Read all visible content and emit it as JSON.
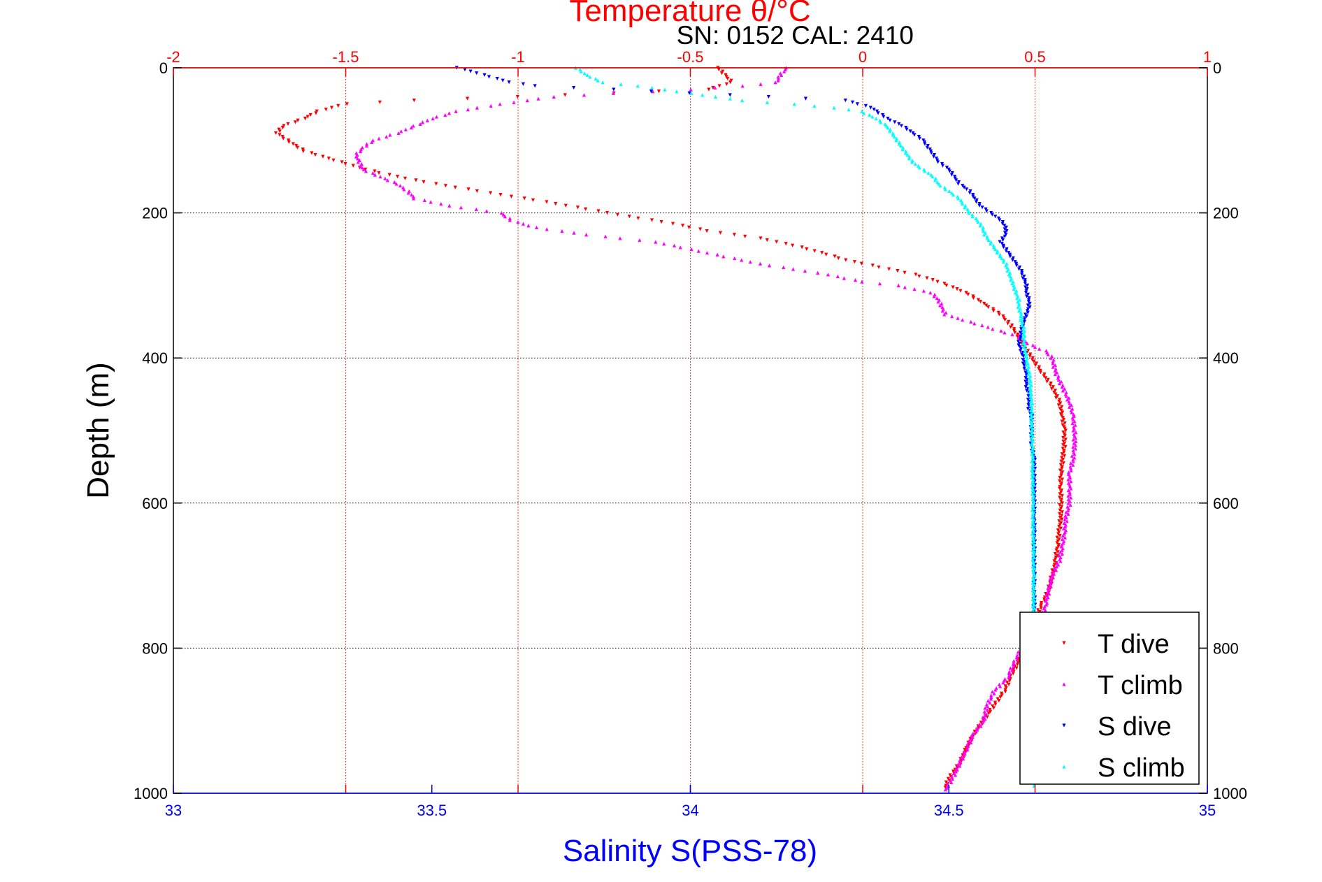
{
  "chart_data": {
    "type": "scatter",
    "title": "Temperature θ/°C",
    "subtitle": "SN: 0152  CAL: 2410",
    "xlabel": "Salinity S(PSS-78)",
    "ylabel": "Depth (m)",
    "top_axis": {
      "label": "Temperature θ/°C",
      "range": [
        -2,
        1
      ],
      "ticks": [
        "-2",
        "-1.5",
        "-1",
        "-0.5",
        "0",
        "0.5",
        "1"
      ],
      "color": "#ff0000"
    },
    "bottom_axis": {
      "label": "Salinity S(PSS-78)",
      "range": [
        33,
        35
      ],
      "ticks": [
        "33",
        "33.5",
        "34",
        "34.5",
        "35"
      ],
      "color": "#0000ff"
    },
    "depth_axis": {
      "range": [
        0,
        1000
      ],
      "inverted": true,
      "ticks": [
        "0",
        "200",
        "400",
        "600",
        "800",
        "1000"
      ]
    },
    "grid": true,
    "legend_position": "bottom-right",
    "series": [
      {
        "name": "T dive",
        "axis": "temperature",
        "color": "#ff0000",
        "marker": "triangle-down",
        "points": [
          [
            -0.42,
            0
          ],
          [
            -0.4,
            10
          ],
          [
            -0.38,
            20
          ],
          [
            -0.45,
            30
          ],
          [
            -1.0,
            40
          ],
          [
            -1.3,
            45
          ],
          [
            -1.5,
            50
          ],
          [
            -1.58,
            60
          ],
          [
            -1.62,
            70
          ],
          [
            -1.68,
            80
          ],
          [
            -1.7,
            90
          ],
          [
            -1.67,
            100
          ],
          [
            -1.62,
            115
          ],
          [
            -1.55,
            125
          ],
          [
            -1.48,
            135
          ],
          [
            -1.4,
            145
          ],
          [
            -1.3,
            155
          ],
          [
            -1.18,
            165
          ],
          [
            -1.05,
            175
          ],
          [
            -0.92,
            185
          ],
          [
            -0.8,
            195
          ],
          [
            -0.68,
            205
          ],
          [
            -0.55,
            215
          ],
          [
            -0.45,
            225
          ],
          [
            -0.3,
            235
          ],
          [
            -0.2,
            245
          ],
          [
            -0.12,
            255
          ],
          [
            -0.05,
            265
          ],
          [
            0.05,
            275
          ],
          [
            0.15,
            285
          ],
          [
            0.22,
            295
          ],
          [
            0.3,
            310
          ],
          [
            0.35,
            325
          ],
          [
            0.4,
            340
          ],
          [
            0.43,
            355
          ],
          [
            0.45,
            370
          ],
          [
            0.47,
            385
          ],
          [
            0.49,
            400
          ],
          [
            0.52,
            420
          ],
          [
            0.55,
            440
          ],
          [
            0.57,
            460
          ],
          [
            0.58,
            480
          ],
          [
            0.585,
            500
          ],
          [
            0.585,
            520
          ],
          [
            0.58,
            540
          ],
          [
            0.575,
            560
          ],
          [
            0.575,
            580
          ],
          [
            0.575,
            600
          ],
          [
            0.575,
            620
          ],
          [
            0.57,
            640
          ],
          [
            0.565,
            660
          ],
          [
            0.56,
            680
          ],
          [
            0.55,
            700
          ],
          [
            0.54,
            720
          ],
          [
            0.52,
            740
          ],
          [
            0.5,
            760
          ],
          [
            0.48,
            780
          ],
          [
            0.47,
            800
          ],
          [
            0.45,
            820
          ],
          [
            0.43,
            840
          ],
          [
            0.41,
            860
          ],
          [
            0.38,
            880
          ],
          [
            0.35,
            900
          ],
          [
            0.32,
            920
          ],
          [
            0.3,
            940
          ],
          [
            0.28,
            960
          ],
          [
            0.25,
            980
          ],
          [
            0.24,
            992
          ]
        ]
      },
      {
        "name": "T climb",
        "axis": "temperature",
        "color": "#ff00ff",
        "marker": "triangle-up",
        "points": [
          [
            -0.22,
            0
          ],
          [
            -0.24,
            10
          ],
          [
            -0.25,
            20
          ],
          [
            -0.35,
            25
          ],
          [
            -0.5,
            30
          ],
          [
            -0.72,
            35
          ],
          [
            -0.9,
            40
          ],
          [
            -1.05,
            50
          ],
          [
            -1.18,
            60
          ],
          [
            -1.25,
            70
          ],
          [
            -1.3,
            80
          ],
          [
            -1.35,
            90
          ],
          [
            -1.42,
            100
          ],
          [
            -1.45,
            110
          ],
          [
            -1.47,
            120
          ],
          [
            -1.46,
            130
          ],
          [
            -1.45,
            140
          ],
          [
            -1.4,
            150
          ],
          [
            -1.35,
            160
          ],
          [
            -1.32,
            170
          ],
          [
            -1.3,
            180
          ],
          [
            -1.2,
            190
          ],
          [
            -1.05,
            200
          ],
          [
            -1.02,
            210
          ],
          [
            -0.95,
            220
          ],
          [
            -0.8,
            230
          ],
          [
            -0.6,
            240
          ],
          [
            -0.5,
            250
          ],
          [
            -0.4,
            260
          ],
          [
            -0.3,
            270
          ],
          [
            -0.1,
            285
          ],
          [
            0.0,
            295
          ],
          [
            0.1,
            300
          ],
          [
            0.2,
            310
          ],
          [
            0.22,
            320
          ],
          [
            0.23,
            330
          ],
          [
            0.24,
            340
          ],
          [
            0.45,
            370
          ],
          [
            0.48,
            380
          ],
          [
            0.5,
            385
          ],
          [
            0.53,
            390
          ],
          [
            0.55,
            400
          ],
          [
            0.56,
            420
          ],
          [
            0.58,
            440
          ],
          [
            0.6,
            460
          ],
          [
            0.61,
            480
          ],
          [
            0.615,
            500
          ],
          [
            0.615,
            520
          ],
          [
            0.61,
            540
          ],
          [
            0.6,
            560
          ],
          [
            0.6,
            580
          ],
          [
            0.6,
            600
          ],
          [
            0.59,
            620
          ],
          [
            0.585,
            640
          ],
          [
            0.58,
            660
          ],
          [
            0.57,
            680
          ],
          [
            0.55,
            700
          ],
          [
            0.54,
            720
          ],
          [
            0.53,
            740
          ],
          [
            0.52,
            760
          ],
          [
            0.5,
            780
          ],
          [
            0.46,
            800
          ],
          [
            0.44,
            820
          ],
          [
            0.42,
            840
          ],
          [
            0.38,
            860
          ],
          [
            0.36,
            880
          ],
          [
            0.35,
            900
          ],
          [
            0.32,
            920
          ],
          [
            0.3,
            940
          ],
          [
            0.28,
            960
          ],
          [
            0.26,
            980
          ],
          [
            0.24,
            995
          ]
        ]
      },
      {
        "name": "S dive",
        "axis": "salinity",
        "color": "#0000ff",
        "marker": "triangle-down",
        "points": [
          [
            33.55,
            0
          ],
          [
            33.6,
            10
          ],
          [
            33.65,
            20
          ],
          [
            33.7,
            25
          ],
          [
            33.85,
            30
          ],
          [
            34.0,
            35
          ],
          [
            34.15,
            40
          ],
          [
            34.3,
            45
          ],
          [
            34.35,
            55
          ],
          [
            34.38,
            70
          ],
          [
            34.41,
            80
          ],
          [
            34.43,
            90
          ],
          [
            34.45,
            100
          ],
          [
            34.46,
            110
          ],
          [
            34.47,
            120
          ],
          [
            34.48,
            130
          ],
          [
            34.5,
            140
          ],
          [
            34.51,
            150
          ],
          [
            34.52,
            160
          ],
          [
            34.54,
            170
          ],
          [
            34.55,
            180
          ],
          [
            34.56,
            190
          ],
          [
            34.58,
            200
          ],
          [
            34.6,
            210
          ],
          [
            34.61,
            220
          ],
          [
            34.61,
            230
          ],
          [
            34.6,
            240
          ],
          [
            34.61,
            250
          ],
          [
            34.62,
            260
          ],
          [
            34.63,
            270
          ],
          [
            34.64,
            280
          ],
          [
            34.645,
            290
          ],
          [
            34.65,
            300
          ],
          [
            34.65,
            310
          ],
          [
            34.655,
            320
          ],
          [
            34.655,
            330
          ],
          [
            34.65,
            340
          ],
          [
            34.645,
            350
          ],
          [
            34.64,
            360
          ],
          [
            34.64,
            370
          ],
          [
            34.635,
            380
          ],
          [
            34.64,
            390
          ],
          [
            34.645,
            400
          ],
          [
            34.645,
            410
          ],
          [
            34.65,
            420
          ],
          [
            34.65,
            430
          ],
          [
            34.65,
            440
          ],
          [
            34.655,
            450
          ],
          [
            34.655,
            460
          ],
          [
            34.655,
            470
          ],
          [
            34.66,
            480
          ],
          [
            34.66,
            500
          ],
          [
            34.66,
            520
          ],
          [
            34.665,
            540
          ],
          [
            34.665,
            560
          ],
          [
            34.665,
            580
          ],
          [
            34.665,
            600
          ],
          [
            34.665,
            620
          ],
          [
            34.665,
            640
          ],
          [
            34.665,
            660
          ],
          [
            34.665,
            680
          ],
          [
            34.665,
            700
          ],
          [
            34.665,
            720
          ],
          [
            34.665,
            740
          ],
          [
            34.665,
            760
          ]
        ]
      },
      {
        "name": "S climb",
        "axis": "salinity",
        "color": "#00ffff",
        "marker": "triangle-up",
        "points": [
          [
            33.78,
            0
          ],
          [
            33.8,
            10
          ],
          [
            33.83,
            20
          ],
          [
            33.9,
            25
          ],
          [
            34.0,
            35
          ],
          [
            34.05,
            40
          ],
          [
            34.1,
            45
          ],
          [
            34.2,
            50
          ],
          [
            34.28,
            55
          ],
          [
            34.33,
            60
          ],
          [
            34.36,
            70
          ],
          [
            34.38,
            80
          ],
          [
            34.39,
            90
          ],
          [
            34.4,
            100
          ],
          [
            34.41,
            110
          ],
          [
            34.42,
            120
          ],
          [
            34.43,
            130
          ],
          [
            34.45,
            140
          ],
          [
            34.47,
            150
          ],
          [
            34.48,
            160
          ],
          [
            34.5,
            170
          ],
          [
            34.52,
            180
          ],
          [
            34.53,
            190
          ],
          [
            34.54,
            200
          ],
          [
            34.555,
            210
          ],
          [
            34.565,
            220
          ],
          [
            34.57,
            230
          ],
          [
            34.58,
            240
          ],
          [
            34.59,
            250
          ],
          [
            34.6,
            260
          ],
          [
            34.61,
            270
          ],
          [
            34.615,
            280
          ],
          [
            34.62,
            290
          ],
          [
            34.625,
            300
          ],
          [
            34.63,
            310
          ],
          [
            34.635,
            320
          ],
          [
            34.635,
            330
          ],
          [
            34.64,
            340
          ],
          [
            34.64,
            350
          ],
          [
            34.645,
            360
          ],
          [
            34.645,
            370
          ],
          [
            34.645,
            380
          ],
          [
            34.648,
            390
          ],
          [
            34.65,
            400
          ],
          [
            34.652,
            410
          ],
          [
            34.655,
            420
          ],
          [
            34.657,
            430
          ],
          [
            34.658,
            440
          ],
          [
            34.658,
            450
          ],
          [
            34.66,
            460
          ],
          [
            34.66,
            480
          ],
          [
            34.66,
            500
          ],
          [
            34.662,
            520
          ],
          [
            34.662,
            540
          ],
          [
            34.662,
            560
          ],
          [
            34.663,
            580
          ],
          [
            34.663,
            600
          ],
          [
            34.663,
            620
          ],
          [
            34.663,
            640
          ],
          [
            34.664,
            660
          ],
          [
            34.664,
            680
          ],
          [
            34.664,
            700
          ],
          [
            34.664,
            720
          ],
          [
            34.664,
            740
          ],
          [
            34.664,
            760
          ],
          [
            34.665,
            990
          ]
        ]
      }
    ]
  }
}
